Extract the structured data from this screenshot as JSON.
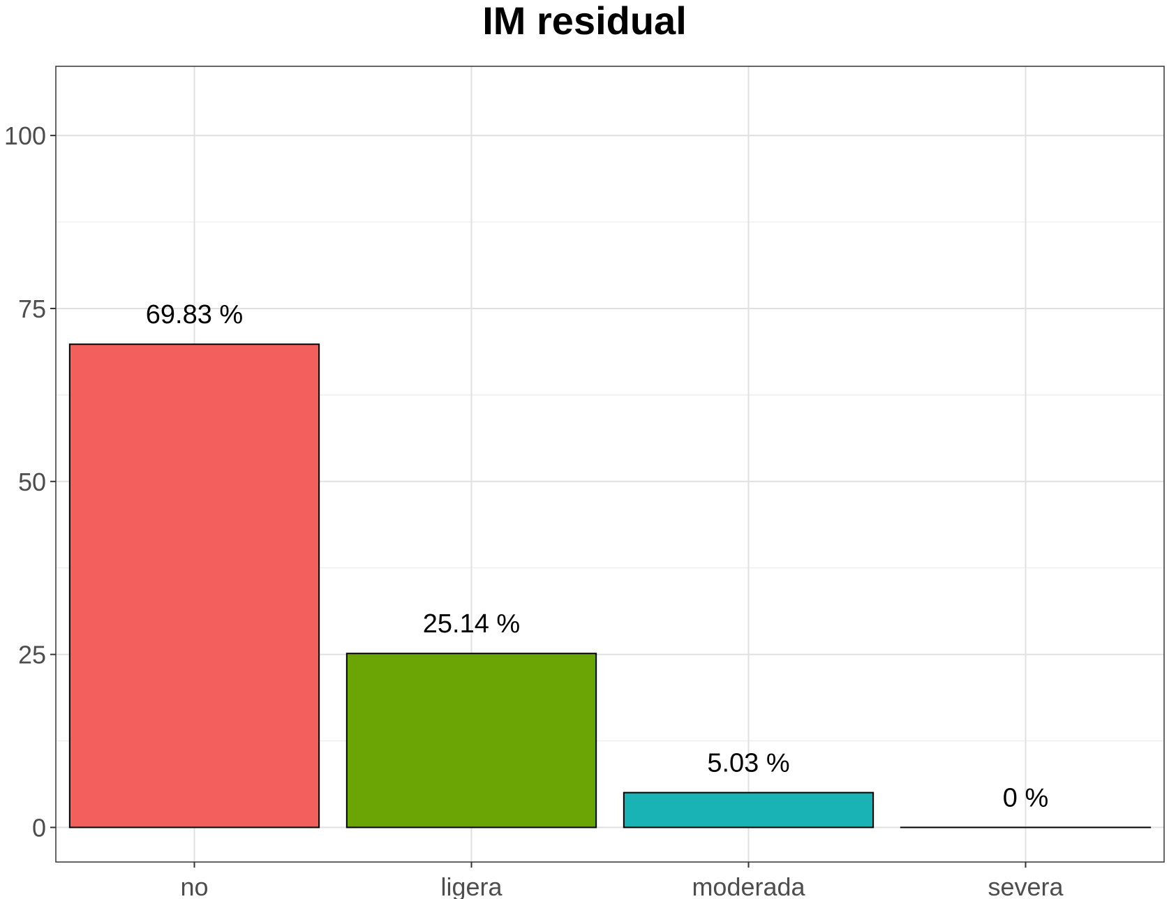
{
  "chart_data": {
    "type": "bar",
    "title": "IM residual",
    "categories": [
      "no",
      "ligera",
      "moderada",
      "severa"
    ],
    "values": [
      69.83,
      25.14,
      5.03,
      0
    ],
    "data_labels": [
      "69.83 %",
      "25.14 %",
      "5.03 %",
      "0 %"
    ],
    "colors": [
      "#F25F5C",
      "#6BA405",
      "#19B3B6",
      "#C77CFF"
    ],
    "ylim": [
      -5,
      110
    ],
    "yticks": [
      0,
      25,
      50,
      75,
      100
    ],
    "ytick_labels": [
      "0",
      "25",
      "50",
      "75",
      "100"
    ],
    "xlabel": "",
    "ylabel": "",
    "grid": true,
    "legend": "none"
  }
}
